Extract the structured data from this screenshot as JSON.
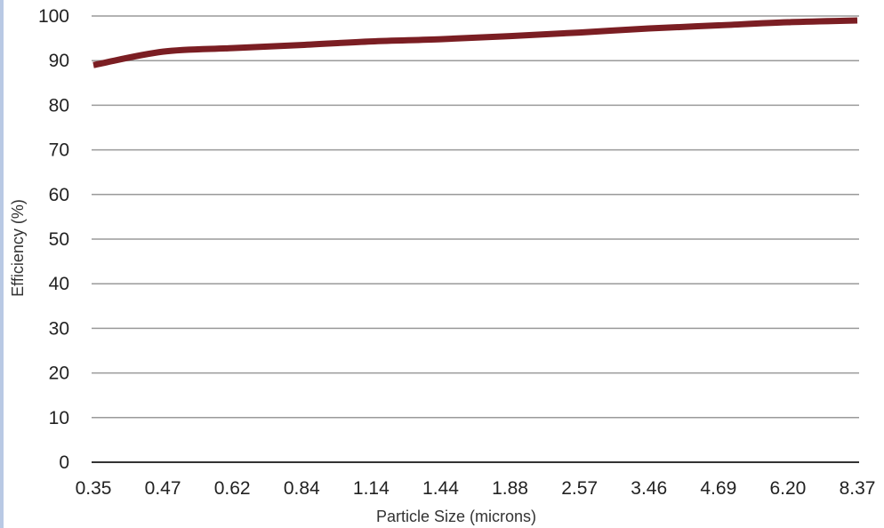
{
  "chart_data": {
    "type": "line",
    "title": "",
    "xlabel": "Particle Size (microns)",
    "ylabel": "Efficiency (%)",
    "categories": [
      "0.35",
      "0.47",
      "0.62",
      "0.84",
      "1.14",
      "1.44",
      "1.88",
      "2.57",
      "3.46",
      "4.69",
      "6.20",
      "8.37"
    ],
    "y_ticks": [
      "0",
      "10",
      "20",
      "30",
      "40",
      "50",
      "60",
      "70",
      "80",
      "90",
      "100"
    ],
    "ylim": [
      0,
      100
    ],
    "grid": true,
    "legend": "none",
    "series": [
      {
        "values": [
          89,
          92,
          92.8,
          93.5,
          94.3,
          94.8,
          95.5,
          96.3,
          97.2,
          97.9,
          98.6,
          99.0
        ],
        "color": "#7b1e23"
      }
    ],
    "colors": {
      "gridline": "#9a9a9a",
      "axis": "#333333",
      "stripe": "#b9c9e4"
    }
  }
}
